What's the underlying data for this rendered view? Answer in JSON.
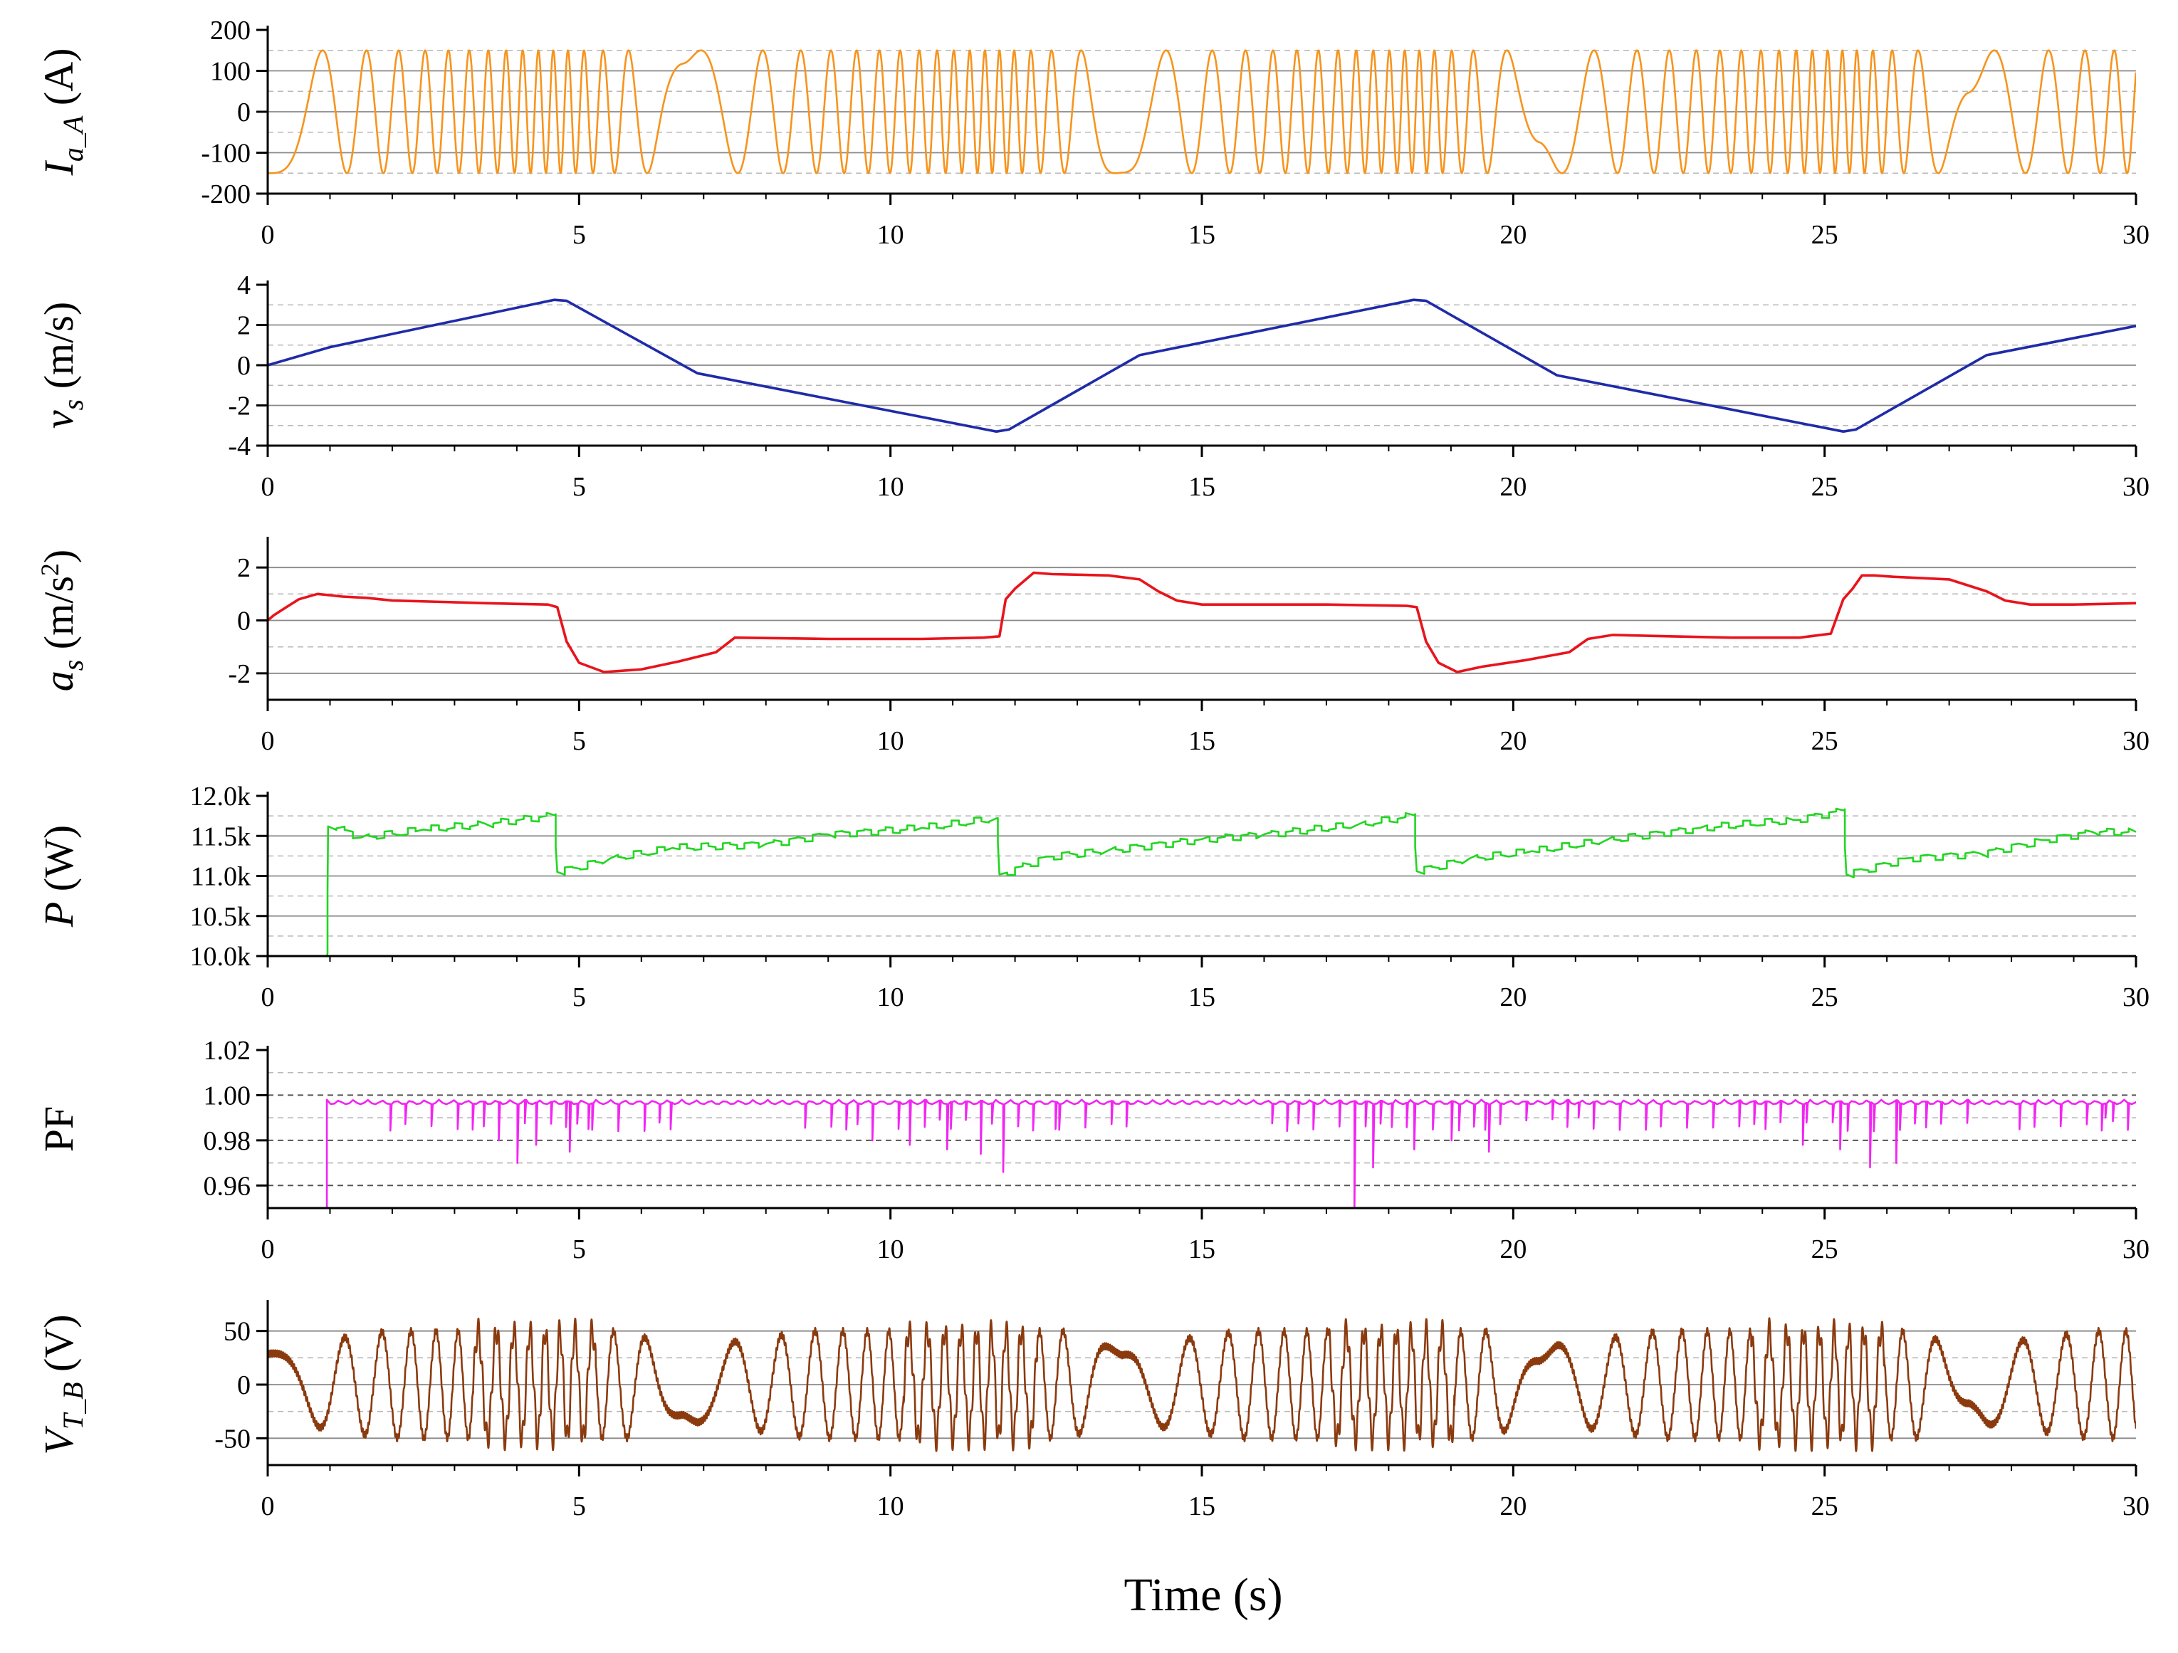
{
  "figure": {
    "xlabel": "Time (s)"
  },
  "chart_data": [
    {
      "type": "line",
      "id": "ia",
      "ylabel_main": "I",
      "ylabel_sub": "a_A",
      "ylabel_unit": " (A)",
      "color": "#F7941D",
      "xlim": [
        0,
        30
      ],
      "ylim": [
        -200,
        200
      ],
      "yticks": [
        200,
        100,
        0,
        -100,
        -200
      ],
      "ytick_labels": [
        "200",
        "100",
        "0",
        "-100",
        "-200"
      ],
      "xticks": [
        0,
        5,
        10,
        15,
        20,
        25,
        30
      ],
      "xtick_labels": [
        "0",
        "5",
        "10",
        "15",
        "20",
        "25",
        "30"
      ],
      "solid_grid": [
        100,
        0,
        -100
      ],
      "dashed_grid": [
        150,
        50,
        -50,
        -150
      ],
      "amplitude": 150,
      "description_values": {
        "peak": 150,
        "trough": -150
      }
    },
    {
      "type": "line",
      "id": "vs",
      "ylabel_main": "v",
      "ylabel_sub": "s",
      "ylabel_unit": " (m/s)",
      "color": "#1F2BA8",
      "xlim": [
        0,
        30
      ],
      "ylim": [
        -4,
        4
      ],
      "yticks": [
        4,
        2,
        0,
        -2,
        -4
      ],
      "ytick_labels": [
        "4",
        "2",
        "0",
        "-2",
        "-4"
      ],
      "xticks": [
        0,
        5,
        10,
        15,
        20,
        25,
        30
      ],
      "xtick_labels": [
        "0",
        "5",
        "10",
        "15",
        "20",
        "25",
        "30"
      ],
      "solid_grid": [
        2,
        0,
        -2
      ],
      "dashed_grid": [
        3,
        1,
        -1,
        -3
      ],
      "x": [
        0,
        1.0,
        4.6,
        4.8,
        6.9,
        11.7,
        11.9,
        14.0,
        18.4,
        18.6,
        20.7,
        25.3,
        25.5,
        27.6,
        30.0
      ],
      "y": [
        0,
        0.9,
        3.25,
        3.2,
        -0.4,
        -3.3,
        -3.2,
        0.5,
        3.25,
        3.2,
        -0.5,
        -3.3,
        -3.2,
        0.5,
        1.95
      ]
    },
    {
      "type": "line",
      "id": "as",
      "ylabel_main": "a",
      "ylabel_sub": "s",
      "ylabel_unit": " (m/s",
      "ylabel_sup": "2",
      "ylabel_close": ")",
      "color": "#E8141C",
      "xlim": [
        0,
        30
      ],
      "ylim": [
        -3,
        3
      ],
      "yticks": [
        2,
        0,
        -2
      ],
      "ytick_labels": [
        "2",
        "0",
        "-2"
      ],
      "xticks": [
        0,
        5,
        10,
        15,
        20,
        25,
        30
      ],
      "xtick_labels": [
        "0",
        "5",
        "10",
        "15",
        "20",
        "25",
        "30"
      ],
      "solid_grid": [
        2,
        0,
        -2
      ],
      "dashed_grid": [
        1,
        -1
      ],
      "x": [
        0,
        0.1,
        0.3,
        0.5,
        0.8,
        1.2,
        1.6,
        2.0,
        2.8,
        3.5,
        4.5,
        4.65,
        4.8,
        5.0,
        5.4,
        6.0,
        6.6,
        7.2,
        7.5,
        9.0,
        10.5,
        11.5,
        11.75,
        11.85,
        12.0,
        12.3,
        12.6,
        13.5,
        14.0,
        14.3,
        14.6,
        15.0,
        16.0,
        17.0,
        18.3,
        18.45,
        18.6,
        18.8,
        19.1,
        19.5,
        20.2,
        20.9,
        21.2,
        21.6,
        22.5,
        23.5,
        24.6,
        25.1,
        25.3,
        25.45,
        25.6,
        25.8,
        26.1,
        27.0,
        27.6,
        27.9,
        28.3,
        29.0,
        30.0
      ],
      "y": [
        0,
        0.2,
        0.5,
        0.8,
        1.0,
        0.9,
        0.85,
        0.75,
        0.7,
        0.65,
        0.6,
        0.5,
        -0.8,
        -1.6,
        -1.95,
        -1.85,
        -1.55,
        -1.2,
        -0.65,
        -0.7,
        -0.7,
        -0.65,
        -0.6,
        0.8,
        1.2,
        1.8,
        1.75,
        1.7,
        1.55,
        1.1,
        0.75,
        0.6,
        0.6,
        0.6,
        0.55,
        0.5,
        -0.8,
        -1.6,
        -1.95,
        -1.75,
        -1.5,
        -1.2,
        -0.7,
        -0.55,
        -0.6,
        -0.65,
        -0.65,
        -0.5,
        0.8,
        1.2,
        1.7,
        1.7,
        1.65,
        1.55,
        1.1,
        0.75,
        0.6,
        0.6,
        0.65
      ]
    },
    {
      "type": "line",
      "id": "p",
      "ylabel_main": "P",
      "ylabel_sub": "",
      "ylabel_unit": " (W)",
      "color": "#22D622",
      "xlim": [
        0,
        30
      ],
      "ylim": [
        10000,
        12000
      ],
      "yticks": [
        12000,
        11500,
        11000,
        10500,
        10000
      ],
      "ytick_labels": [
        "12.0k",
        "11.5k",
        "11.0k",
        "10.5k",
        "10.0k"
      ],
      "xticks": [
        0,
        5,
        10,
        15,
        20,
        25,
        30
      ],
      "xtick_labels": [
        "0",
        "5",
        "10",
        "15",
        "20",
        "25",
        "30"
      ],
      "solid_grid": [
        11500,
        11000,
        10500
      ],
      "dashed_grid": [
        11750,
        11250,
        10750,
        10250
      ],
      "x": [
        0.95,
        0.97,
        1.5,
        2.5,
        3.5,
        4.6,
        4.65,
        5.5,
        6.5,
        8.0,
        9.0,
        10.5,
        11.7,
        11.75,
        12.5,
        13.5,
        15.0,
        16.0,
        17.5,
        18.4,
        18.45,
        19.3,
        20.3,
        21.5,
        23.0,
        24.5,
        25.3,
        25.35,
        26.3,
        27.5,
        28.5,
        29.3,
        30.0
      ],
      "y": [
        10000,
        11620,
        11480,
        11580,
        11650,
        11760,
        11050,
        11220,
        11350,
        11400,
        11520,
        11600,
        11720,
        11020,
        11240,
        11320,
        11460,
        11520,
        11640,
        11760,
        11060,
        11220,
        11310,
        11450,
        11600,
        11700,
        11820,
        11020,
        11220,
        11280,
        11450,
        11550,
        11550
      ]
    },
    {
      "type": "line",
      "id": "pf",
      "ylabel_main": "PF",
      "ylabel_sub": "",
      "ylabel_unit": "",
      "color": "#F225F2",
      "xlim": [
        0,
        30
      ],
      "ylim": [
        0.95,
        1.02
      ],
      "yticks": [
        1.02,
        1.0,
        0.98,
        0.96
      ],
      "ytick_labels": [
        "1.02",
        "1.00",
        "0.98",
        "0.96"
      ],
      "xticks": [
        0,
        5,
        10,
        15,
        20,
        25,
        30
      ],
      "xtick_labels": [
        "0",
        "5",
        "10",
        "15",
        "20",
        "25",
        "30"
      ],
      "solid_grid": [],
      "dashed_grid": [
        1.01,
        1.0,
        0.99,
        0.98,
        0.97,
        0.96
      ],
      "dashed_dark": [
        1.0,
        0.98,
        0.96
      ],
      "baseline": 0.998,
      "start_x": 0.95,
      "drop_spikes": [
        {
          "x": 0.95,
          "y": 0.95
        },
        {
          "x": 3.0,
          "y": 0.985
        },
        {
          "x": 3.7,
          "y": 0.98
        },
        {
          "x": 4.0,
          "y": 0.97
        },
        {
          "x": 4.3,
          "y": 0.978
        },
        {
          "x": 4.8,
          "y": 0.975
        },
        {
          "x": 5.1,
          "y": 0.985
        },
        {
          "x": 9.7,
          "y": 0.98
        },
        {
          "x": 10.3,
          "y": 0.978
        },
        {
          "x": 10.9,
          "y": 0.976
        },
        {
          "x": 11.4,
          "y": 0.974
        },
        {
          "x": 11.8,
          "y": 0.966
        },
        {
          "x": 12.6,
          "y": 0.985
        },
        {
          "x": 17.4,
          "y": 0.95
        },
        {
          "x": 17.7,
          "y": 0.968
        },
        {
          "x": 18.4,
          "y": 0.976
        },
        {
          "x": 19.0,
          "y": 0.98
        },
        {
          "x": 19.6,
          "y": 0.975
        },
        {
          "x": 21.0,
          "y": 0.99
        },
        {
          "x": 24.0,
          "y": 0.985
        },
        {
          "x": 24.6,
          "y": 0.978
        },
        {
          "x": 25.2,
          "y": 0.976
        },
        {
          "x": 25.7,
          "y": 0.968
        },
        {
          "x": 26.1,
          "y": 0.97
        },
        {
          "x": 29.5,
          "y": 0.99
        }
      ]
    },
    {
      "type": "line",
      "id": "vt",
      "ylabel_main": "V",
      "ylabel_sub": "T_B",
      "ylabel_unit": " (V)",
      "color": "#8B3A0E",
      "xlim": [
        0,
        30
      ],
      "ylim": [
        -75,
        75
      ],
      "yticks": [
        50,
        0,
        -50
      ],
      "ytick_labels": [
        "50",
        "0",
        "-50"
      ],
      "xticks": [
        0,
        5,
        10,
        15,
        20,
        25,
        30
      ],
      "xtick_labels": [
        "0",
        "5",
        "10",
        "15",
        "20",
        "25",
        "30"
      ],
      "solid_grid": [
        50,
        0,
        -50
      ],
      "dashed_grid": [
        25,
        -25
      ],
      "amplitude": 52
    }
  ]
}
